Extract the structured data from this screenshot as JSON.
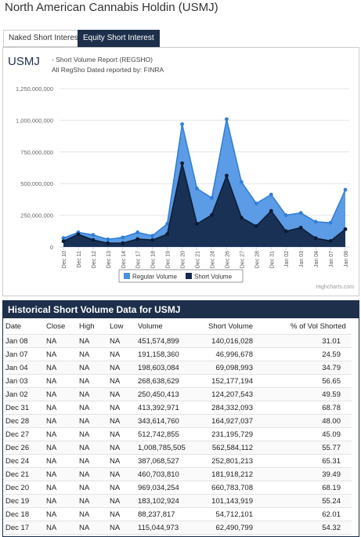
{
  "header": {
    "title": "North American Cannabis Holdin",
    "ticker": "(USMJ)"
  },
  "tabs": [
    "Naked Short Interest",
    "Equity Short Interest"
  ],
  "chart_data": {
    "type": "area",
    "symbol": "USMJ",
    "title": "- Short Volume Report (REGSHO)",
    "subtitle": "All RegSho Dated reported by: FINRA",
    "credit": "Highcharts.com",
    "categories": [
      "Dec 10",
      "Dec 11",
      "Dec 12",
      "Dec 13",
      "Dec 14",
      "Dec 17",
      "Dec 18",
      "Dec 19",
      "Dec 20",
      "Dec 21",
      "Dec 24",
      "Dec 26",
      "Dec 27",
      "Dec 28",
      "Dec 31",
      "Jan 02",
      "Jan 03",
      "Jan 04",
      "Jan 07",
      "Jan 08"
    ],
    "series": [
      {
        "name": "Regular Volume",
        "color": "#4a90e2",
        "values": [
          70000000,
          115000000,
          95000000,
          60000000,
          75000000,
          115044973,
          88237817,
          183102924,
          969034254,
          460703810,
          387068527,
          1008785505,
          512742855,
          343614760,
          413392971,
          250450413,
          268638629,
          198603084,
          191158360,
          451574899
        ]
      },
      {
        "name": "Short Volume",
        "color": "#152b4d",
        "values": [
          45000000,
          100000000,
          55000000,
          30000000,
          30000000,
          62490799,
          54712101,
          101143919,
          660783708,
          181918212,
          252801213,
          562584112,
          231195729,
          164927037,
          284332093,
          124207543,
          152177194,
          69098993,
          46996678,
          140016028
        ]
      }
    ],
    "ylim": [
      0,
      1250000000
    ],
    "yticks": [
      0,
      {
        "value": 250000000,
        "label": "250,000,000"
      },
      {
        "value": 500000000,
        "label": "500,000,000"
      },
      {
        "value": 750000000,
        "label": "750,000,000"
      },
      {
        "value": 1000000000,
        "label": "1,000,000,000"
      },
      {
        "value": 1250000000,
        "label": "1,250,000,000"
      }
    ],
    "grid": true
  },
  "table": {
    "title": "Historical Short Volume Data for USMJ",
    "columns": [
      "Date",
      "Close",
      "High",
      "Low",
      "Volume",
      "Short Volume",
      "% of Vol Shorted"
    ],
    "rows": [
      [
        "Jan 08",
        "NA",
        "NA",
        "NA",
        "451,574,899",
        "140,016,028",
        "31.01"
      ],
      [
        "Jan 07",
        "NA",
        "NA",
        "NA",
        "191,158,360",
        "46,996,678",
        "24.59"
      ],
      [
        "Jan 04",
        "NA",
        "NA",
        "NA",
        "198,603,084",
        "69,098,993",
        "34.79"
      ],
      [
        "Jan 03",
        "NA",
        "NA",
        "NA",
        "268,638,629",
        "152,177,194",
        "56.65"
      ],
      [
        "Jan 02",
        "NA",
        "NA",
        "NA",
        "250,450,413",
        "124,207,543",
        "49.59"
      ],
      [
        "Dec 31",
        "NA",
        "NA",
        "NA",
        "413,392,971",
        "284,332,093",
        "68.78"
      ],
      [
        "Dec 28",
        "NA",
        "NA",
        "NA",
        "343,614,760",
        "164,927,037",
        "48.00"
      ],
      [
        "Dec 27",
        "NA",
        "NA",
        "NA",
        "512,742,855",
        "231,195,729",
        "45.09"
      ],
      [
        "Dec 26",
        "NA",
        "NA",
        "NA",
        "1,008,785,505",
        "562,584,112",
        "55.77"
      ],
      [
        "Dec 24",
        "NA",
        "NA",
        "NA",
        "387,068,527",
        "252,801,213",
        "65.31"
      ],
      [
        "Dec 21",
        "NA",
        "NA",
        "NA",
        "460,703,810",
        "181,918,212",
        "39.49"
      ],
      [
        "Dec 20",
        "NA",
        "NA",
        "NA",
        "969,034,254",
        "660,783,708",
        "68.19"
      ],
      [
        "Dec 19",
        "NA",
        "NA",
        "NA",
        "183,102,924",
        "101,143,919",
        "55.24"
      ],
      [
        "Dec 18",
        "NA",
        "NA",
        "NA",
        "88,237,817",
        "54,712,101",
        "62.01"
      ],
      [
        "Dec 17",
        "NA",
        "NA",
        "NA",
        "115,044,973",
        "62,490,799",
        "54.32"
      ]
    ]
  }
}
